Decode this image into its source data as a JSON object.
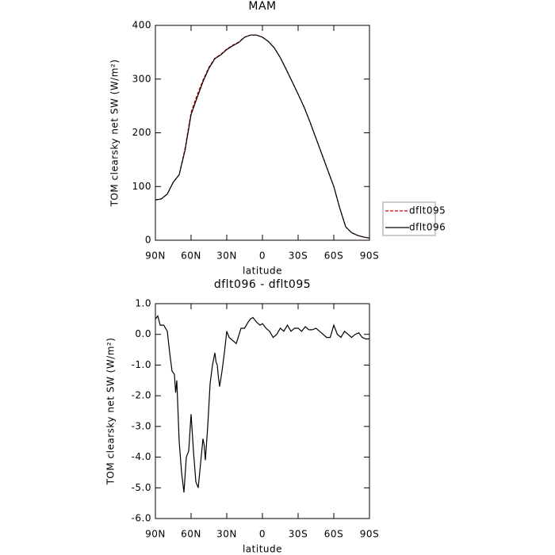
{
  "chart_data": [
    {
      "type": "line",
      "title": "MAM",
      "xlabel": "latitude",
      "ylabel": "TOM clearsky net SW (W/m²)",
      "x": [
        90,
        85,
        80,
        75,
        70,
        65,
        60,
        55,
        50,
        45,
        40,
        35,
        30,
        25,
        20,
        15,
        10,
        5,
        0,
        -5,
        -10,
        -15,
        -20,
        -25,
        -30,
        -35,
        -40,
        -45,
        -50,
        -55,
        -60,
        -65,
        -70,
        -75,
        -80,
        -85,
        -90
      ],
      "series": [
        {
          "name": "dflt095",
          "color": "#cc0000",
          "linestyle": "dashed",
          "values": [
            75,
            77,
            86,
            108,
            122,
            172,
            238,
            270,
            298,
            322,
            339,
            346,
            356,
            363,
            369,
            378,
            382,
            382,
            378,
            370,
            358,
            340,
            318,
            295,
            272,
            248,
            220,
            190,
            160,
            130,
            100,
            60,
            25,
            14,
            9,
            6,
            4
          ]
        },
        {
          "name": "dflt096",
          "color": "#000000",
          "linestyle": "solid",
          "values": [
            75,
            77,
            86,
            108,
            122,
            168,
            234,
            265,
            295,
            320,
            338,
            345,
            355,
            362,
            368,
            378,
            382,
            382,
            378,
            370,
            358,
            340,
            318,
            295,
            272,
            248,
            220,
            190,
            160,
            130,
            100,
            60,
            25,
            14,
            9,
            6,
            4
          ]
        }
      ],
      "xlim": [
        90,
        -90
      ],
      "xticks": [
        {
          "value": 90,
          "label": "90N"
        },
        {
          "value": 60,
          "label": "60N"
        },
        {
          "value": 30,
          "label": "30N"
        },
        0,
        {
          "value": -30,
          "label": "30S"
        },
        {
          "value": -60,
          "label": "60S"
        },
        {
          "value": -90,
          "label": "90S"
        }
      ],
      "ylim": [
        0,
        400
      ],
      "yticks": [
        0,
        100,
        200,
        300,
        400
      ],
      "legend": "right"
    },
    {
      "type": "line",
      "title": "dflt096 - dflt095",
      "xlabel": "latitude",
      "ylabel": "TOM clearsky net SW (W/m²)",
      "x": [
        90,
        88,
        86,
        83,
        80,
        78,
        76,
        74,
        73,
        72,
        70,
        68,
        66,
        64,
        62,
        60,
        58,
        56,
        54,
        52,
        50,
        49,
        48,
        46,
        44,
        42,
        40,
        39,
        38,
        37,
        36,
        34,
        32,
        30,
        28,
        25,
        22,
        18,
        15,
        12,
        10,
        8,
        5,
        2,
        0,
        -3,
        -6,
        -9,
        -12,
        -15,
        -18,
        -21,
        -24,
        -27,
        -30,
        -33,
        -36,
        -39,
        -42,
        -45,
        -48,
        -51,
        -54,
        -57,
        -60,
        -63,
        -66,
        -69,
        -72,
        -75,
        -78,
        -81,
        -84,
        -87,
        -90
      ],
      "series": [
        {
          "color": "#000000",
          "linestyle": "solid",
          "values": [
            0.5,
            0.6,
            0.3,
            0.3,
            0.1,
            -0.6,
            -1.2,
            -1.3,
            -1.9,
            -1.5,
            -3.5,
            -4.5,
            -5.15,
            -4.0,
            -3.8,
            -2.6,
            -3.8,
            -4.8,
            -5.0,
            -4.2,
            -3.4,
            -3.6,
            -4.1,
            -3.0,
            -1.6,
            -1.0,
            -0.6,
            -0.9,
            -1.0,
            -1.4,
            -1.7,
            -1.2,
            -0.6,
            0.1,
            -0.1,
            -0.2,
            -0.3,
            0.2,
            0.2,
            0.4,
            0.5,
            0.55,
            0.4,
            0.3,
            0.35,
            0.2,
            0.1,
            -0.1,
            0.0,
            0.2,
            0.1,
            0.3,
            0.1,
            0.2,
            0.2,
            0.1,
            0.25,
            0.15,
            0.15,
            0.2,
            0.1,
            0.0,
            -0.1,
            -0.1,
            0.3,
            0.0,
            -0.1,
            0.1,
            0.0,
            -0.1,
            0.0,
            0.05,
            -0.1,
            -0.15,
            -0.15
          ]
        }
      ],
      "xlim": [
        90,
        -90
      ],
      "xticks": [
        {
          "value": 90,
          "label": "90N"
        },
        {
          "value": 60,
          "label": "60N"
        },
        {
          "value": 30,
          "label": "30N"
        },
        0,
        {
          "value": -30,
          "label": "30S"
        },
        {
          "value": -60,
          "label": "60S"
        },
        {
          "value": -90,
          "label": "90S"
        }
      ],
      "ylim": [
        -6,
        1
      ],
      "yticks": [
        {
          "value": 1,
          "label": "1.0"
        },
        {
          "value": 0,
          "label": "0.0"
        },
        {
          "value": -1,
          "label": "-1.0"
        },
        {
          "value": -2,
          "label": "-2.0"
        },
        {
          "value": -3,
          "label": "-3.0"
        },
        {
          "value": -4,
          "label": "-4.0"
        },
        {
          "value": -5,
          "label": "-5.0"
        },
        {
          "value": -6,
          "label": "-6.0"
        }
      ]
    }
  ]
}
